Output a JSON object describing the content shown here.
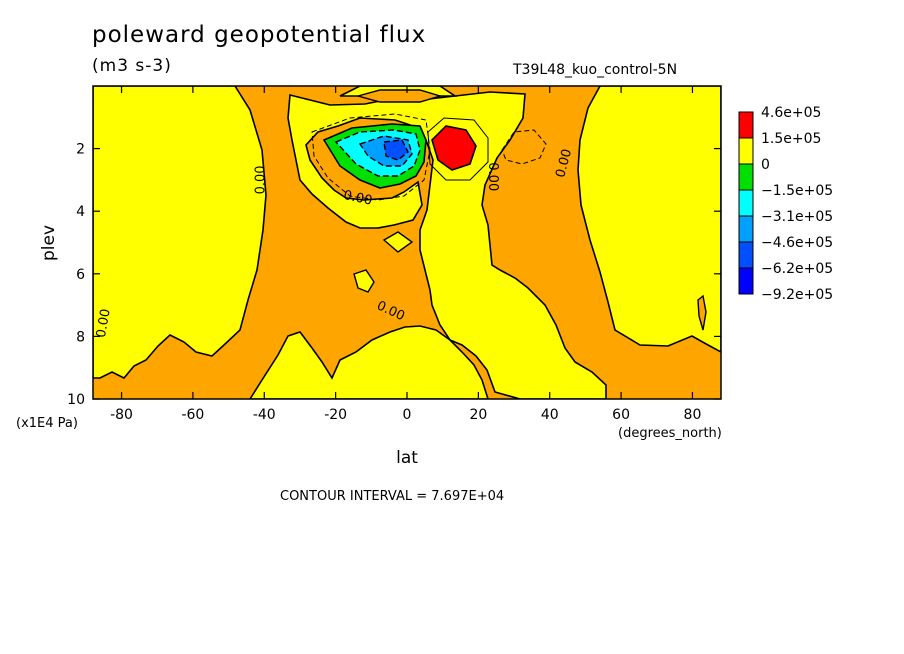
{
  "title": "poleward geopotential flux",
  "units": "(m3 s-3)",
  "run_label": "T39L48_kuo_control-5N",
  "x_unit_note": "(degrees_north)",
  "y_unit_note": "(x1E4 Pa)",
  "contour_interval": "CONTOUR INTERVAL = 7.697E+04",
  "chart_data": {
    "type": "heatmap",
    "xlabel": "lat",
    "ylabel": "plev",
    "xlim": [
      -88,
      88
    ],
    "ylim": [
      10,
      0
    ],
    "x_ticks": [
      -80,
      -60,
      -40,
      -20,
      0,
      20,
      40,
      60,
      80
    ],
    "x_tick_labels": [
      "-80",
      "-60",
      "-40",
      "-20",
      "0",
      "20",
      "40",
      "60",
      "80"
    ],
    "y_ticks": [
      2,
      4,
      6,
      8,
      10
    ],
    "y_tick_labels": [
      "2",
      "4",
      "6",
      "8",
      "10"
    ],
    "contour_labels": [
      {
        "text": "0.00",
        "lat": -40,
        "plev": 3.0,
        "rotate": -90
      },
      {
        "text": "0.00",
        "lat": -14,
        "plev": 3.7,
        "rotate": 12
      },
      {
        "text": "0.00",
        "lat": 23,
        "plev": 2.9,
        "rotate": 90
      },
      {
        "text": "0.00",
        "lat": 45,
        "plev": 2.5,
        "rotate": -75
      },
      {
        "text": "0.00",
        "lat": -84,
        "plev": 7.6,
        "rotate": -80
      },
      {
        "text": "0.00",
        "lat": -5,
        "plev": 7.3,
        "rotate": 25
      }
    ],
    "legend": {
      "placement": "right",
      "levels": [
        {
          "label": "4.6e+05",
          "color": "#ff0000"
        },
        {
          "label": "1.5e+05",
          "color": "#ffa500"
        },
        {
          "label": "0",
          "color": "#ffff00"
        },
        {
          "label": "−1.5e+05",
          "color": "#00e000"
        },
        {
          "label": "−3.1e+05",
          "color": "#00ffff"
        },
        {
          "label": "−4.6e+05",
          "color": "#00a0ff"
        },
        {
          "label": "−6.2e+05",
          "color": "#0050ff"
        },
        {
          "label": "−9.2e+05",
          "color": "#0000ff"
        }
      ]
    },
    "colors": {
      "positive": "#ffa500",
      "near_zero": "#ffff00",
      "strong_positive": "#ff0000",
      "negative_1": "#00e000",
      "negative_2": "#00ffff",
      "negative_3": "#00a0ff",
      "negative_4": "#0050ff"
    }
  }
}
